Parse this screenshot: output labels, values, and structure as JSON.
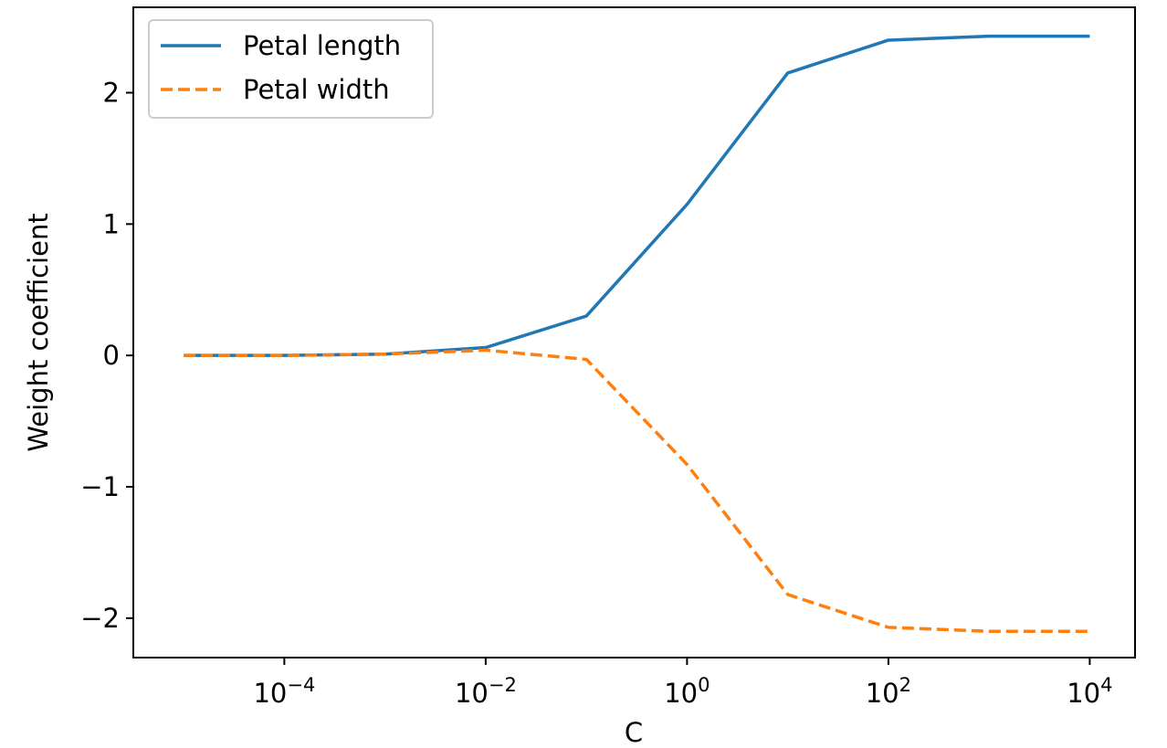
{
  "chart_data": {
    "type": "line",
    "title": "",
    "xlabel": "C",
    "ylabel": "Weight coefficient",
    "xscale": "log10",
    "x_exponents": [
      -5,
      -4,
      -3,
      -2,
      -1,
      0,
      1,
      2,
      3,
      4
    ],
    "xlim_exp": [
      -5.5,
      4.45
    ],
    "ylim": [
      -2.3,
      2.65
    ],
    "x_ticks": [
      {
        "exp": -4,
        "label": "10",
        "sup": "−4"
      },
      {
        "exp": -2,
        "label": "10",
        "sup": "−2"
      },
      {
        "exp": 0,
        "label": "10",
        "sup": "0"
      },
      {
        "exp": 2,
        "label": "10",
        "sup": "2"
      },
      {
        "exp": 4,
        "label": "10",
        "sup": "4"
      }
    ],
    "y_ticks": [
      {
        "value": 2,
        "label": "2"
      },
      {
        "value": 1,
        "label": "1"
      },
      {
        "value": 0,
        "label": "0"
      },
      {
        "value": -1,
        "label": "−1"
      },
      {
        "value": -2,
        "label": "−2"
      }
    ],
    "series": [
      {
        "name": "Petal length",
        "color": "#1f77b4",
        "style": "solid",
        "values": [
          0.0,
          0.0,
          0.01,
          0.06,
          0.3,
          1.15,
          2.15,
          2.4,
          2.43,
          2.43
        ]
      },
      {
        "name": "Petal width",
        "color": "#ff7f0e",
        "style": "dashed",
        "values": [
          0.0,
          0.0,
          0.01,
          0.04,
          -0.03,
          -0.83,
          -1.82,
          -2.07,
          -2.1,
          -2.1
        ]
      }
    ],
    "legend": {
      "position": "upper-left"
    }
  }
}
